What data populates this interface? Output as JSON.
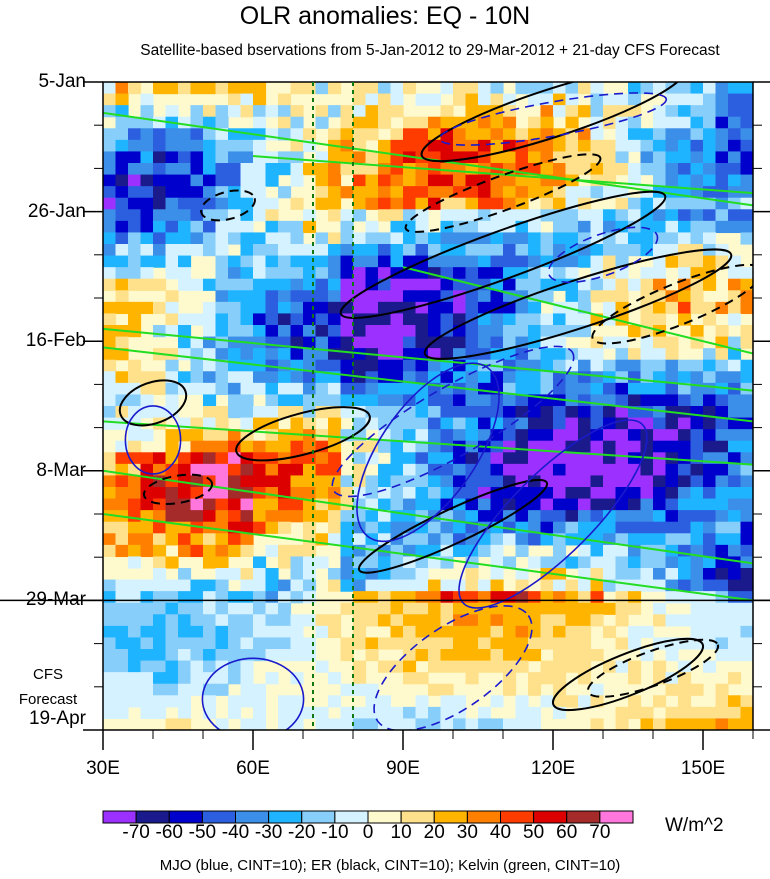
{
  "chart_data": {
    "type": "heatmap",
    "title": "OLR anomalies: EQ - 10N",
    "subtitle": "Satellite-based bservations from 5-Jan-2012 to 29-Mar-2012 + 21-day CFS Forecast",
    "x_ticks": [
      "30E",
      "60E",
      "90E",
      "120E",
      "150E"
    ],
    "x_tick_values": [
      30,
      60,
      90,
      120,
      150
    ],
    "xlim": [
      30,
      160
    ],
    "y_ticks": [
      "5-Jan",
      "26-Jan",
      "16-Feb",
      "8-Mar",
      "29-Mar",
      "19-Apr"
    ],
    "y_tick_days": [
      0,
      21,
      42,
      63,
      84,
      105
    ],
    "ylim_days": [
      0,
      105
    ],
    "forecast_start": "29-Mar",
    "forecast_label": [
      "CFS",
      "Forecast"
    ],
    "reference_lines_lon": [
      72,
      80
    ],
    "colorbar": {
      "labels": [
        "-70",
        "-60",
        "-50",
        "-40",
        "-30",
        "-20",
        "-10",
        "0",
        "10",
        "20",
        "30",
        "40",
        "50",
        "60",
        "70"
      ],
      "colors": [
        "#9b30ff",
        "#1a1a8c",
        "#0000cd",
        "#2b5fe0",
        "#3b8fe8",
        "#1eb4ff",
        "#87cefa",
        "#d4f2ff",
        "#fffacd",
        "#ffe18c",
        "#ffb400",
        "#ff7f00",
        "#ff3c00",
        "#dd0000",
        "#a52a2a",
        "#ff77dd"
      ],
      "units": "W/m^2"
    },
    "contours": {
      "MJO": {
        "color": "#1a1acc"
      },
      "ER": {
        "color": "#000000"
      },
      "Kelvin": {
        "color": "#22dd22"
      }
    },
    "footer": "MJO (blue, CINT=10); ER (black, CINT=10); Kelvin (green, CINT=10)"
  }
}
